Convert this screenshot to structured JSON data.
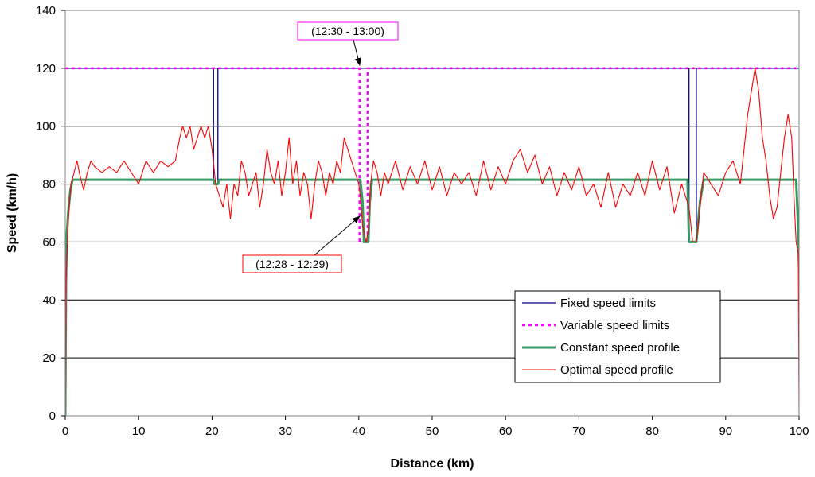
{
  "chart_data": {
    "type": "line",
    "title": "",
    "xlabel": "Distance (km)",
    "ylabel": "Speed (km/h)",
    "xlim": [
      0,
      100
    ],
    "ylim": [
      0,
      140
    ],
    "xticks": [
      "0",
      "10",
      "20",
      "30",
      "40",
      "50",
      "60",
      "70",
      "80",
      "90",
      "100"
    ],
    "yticks": [
      "0",
      "20",
      "40",
      "60",
      "80",
      "100",
      "120",
      "140"
    ],
    "grid": "horizontal",
    "legend_position": "bottom-right",
    "series": [
      {
        "name": "Fixed speed limits",
        "color": "#000080",
        "style": "solid",
        "points": [
          [
            0,
            120
          ],
          [
            20.2,
            120
          ],
          [
            20.2,
            80
          ],
          [
            20.8,
            80
          ],
          [
            20.8,
            120
          ],
          [
            85,
            120
          ],
          [
            85,
            60
          ],
          [
            86,
            60
          ],
          [
            86,
            120
          ],
          [
            100,
            120
          ]
        ]
      },
      {
        "name": "Variable speed limits",
        "color": "#ff00ff",
        "style": "dashed",
        "points": [
          [
            0,
            120
          ],
          [
            40.1,
            120
          ],
          [
            40.1,
            60
          ],
          [
            41.2,
            60
          ],
          [
            41.2,
            120
          ],
          [
            100,
            120
          ]
        ]
      },
      {
        "name": "Constant speed profile",
        "color": "#339966",
        "style": "solid",
        "points": [
          [
            0,
            0
          ],
          [
            0.1,
            46
          ],
          [
            0.2,
            62
          ],
          [
            0.4,
            70
          ],
          [
            0.7,
            78
          ],
          [
            1,
            81.5
          ],
          [
            20.2,
            81.5
          ],
          [
            20.4,
            80
          ],
          [
            20.8,
            80
          ],
          [
            21,
            81.5
          ],
          [
            40.2,
            81.5
          ],
          [
            40.5,
            74
          ],
          [
            40.7,
            60
          ],
          [
            41.3,
            60
          ],
          [
            41.5,
            74
          ],
          [
            41.8,
            81.5
          ],
          [
            84.8,
            81.5
          ],
          [
            85,
            60
          ],
          [
            86,
            60
          ],
          [
            86.5,
            74
          ],
          [
            87,
            81.5
          ],
          [
            99.6,
            81.5
          ],
          [
            99.8,
            70
          ],
          [
            100,
            52
          ]
        ]
      },
      {
        "name": "Optimal speed profile",
        "color": "#ff0000",
        "style": "solid",
        "points": [
          [
            0,
            0
          ],
          [
            0.1,
            46
          ],
          [
            0.3,
            60
          ],
          [
            0.5,
            72
          ],
          [
            0.8,
            80
          ],
          [
            1.2,
            84
          ],
          [
            1.6,
            88
          ],
          [
            2,
            83
          ],
          [
            2.5,
            78
          ],
          [
            3,
            84
          ],
          [
            3.5,
            88
          ],
          [
            4,
            86
          ],
          [
            5,
            84
          ],
          [
            6,
            86
          ],
          [
            7,
            84
          ],
          [
            8,
            88
          ],
          [
            9,
            84
          ],
          [
            10,
            80
          ],
          [
            11,
            88
          ],
          [
            12,
            84
          ],
          [
            13,
            88
          ],
          [
            14,
            86
          ],
          [
            15,
            88
          ],
          [
            15.6,
            96
          ],
          [
            16,
            100
          ],
          [
            16.5,
            96
          ],
          [
            17,
            100
          ],
          [
            17.5,
            92
          ],
          [
            18,
            96
          ],
          [
            18.5,
            100
          ],
          [
            19,
            96
          ],
          [
            19.5,
            100
          ],
          [
            20,
            92
          ],
          [
            20.5,
            80
          ],
          [
            21,
            76
          ],
          [
            21.5,
            72
          ],
          [
            22,
            80
          ],
          [
            22.5,
            68
          ],
          [
            23,
            80
          ],
          [
            23.5,
            76
          ],
          [
            24,
            88
          ],
          [
            24.5,
            84
          ],
          [
            25,
            76
          ],
          [
            25.5,
            80
          ],
          [
            26,
            84
          ],
          [
            26.5,
            72
          ],
          [
            27,
            80
          ],
          [
            27.5,
            92
          ],
          [
            28,
            84
          ],
          [
            28.5,
            80
          ],
          [
            29,
            88
          ],
          [
            29.5,
            76
          ],
          [
            30,
            84
          ],
          [
            30.5,
            96
          ],
          [
            31,
            80
          ],
          [
            31.5,
            88
          ],
          [
            32,
            76
          ],
          [
            32.5,
            84
          ],
          [
            33,
            80
          ],
          [
            33.5,
            68
          ],
          [
            34,
            80
          ],
          [
            34.5,
            88
          ],
          [
            35,
            84
          ],
          [
            35.5,
            76
          ],
          [
            36,
            84
          ],
          [
            36.5,
            80
          ],
          [
            37,
            88
          ],
          [
            37.5,
            84
          ],
          [
            38,
            96
          ],
          [
            38.5,
            92
          ],
          [
            39,
            88
          ],
          [
            39.5,
            84
          ],
          [
            40,
            80
          ],
          [
            40.2,
            76
          ],
          [
            40.5,
            66
          ],
          [
            40.8,
            62
          ],
          [
            41,
            60
          ],
          [
            41.3,
            64
          ],
          [
            41.6,
            80
          ],
          [
            42,
            88
          ],
          [
            42.5,
            84
          ],
          [
            43,
            76
          ],
          [
            43.5,
            84
          ],
          [
            44,
            80
          ],
          [
            45,
            88
          ],
          [
            46,
            78
          ],
          [
            47,
            86
          ],
          [
            48,
            80
          ],
          [
            49,
            88
          ],
          [
            50,
            78
          ],
          [
            51,
            86
          ],
          [
            52,
            76
          ],
          [
            53,
            84
          ],
          [
            54,
            80
          ],
          [
            55,
            84
          ],
          [
            56,
            76
          ],
          [
            57,
            88
          ],
          [
            58,
            78
          ],
          [
            59,
            86
          ],
          [
            60,
            80
          ],
          [
            61,
            88
          ],
          [
            62,
            92
          ],
          [
            63,
            84
          ],
          [
            64,
            90
          ],
          [
            65,
            80
          ],
          [
            66,
            86
          ],
          [
            67,
            76
          ],
          [
            68,
            84
          ],
          [
            69,
            78
          ],
          [
            70,
            86
          ],
          [
            71,
            76
          ],
          [
            72,
            80
          ],
          [
            73,
            72
          ],
          [
            74,
            84
          ],
          [
            75,
            72
          ],
          [
            76,
            80
          ],
          [
            77,
            76
          ],
          [
            78,
            84
          ],
          [
            79,
            76
          ],
          [
            80,
            88
          ],
          [
            81,
            78
          ],
          [
            82,
            86
          ],
          [
            83,
            70
          ],
          [
            84,
            80
          ],
          [
            85,
            72
          ],
          [
            85.5,
            60
          ],
          [
            86,
            60
          ],
          [
            86.5,
            72
          ],
          [
            87,
            84
          ],
          [
            88,
            80
          ],
          [
            89,
            76
          ],
          [
            90,
            84
          ],
          [
            91,
            88
          ],
          [
            92,
            80
          ],
          [
            92.5,
            92
          ],
          [
            93,
            104
          ],
          [
            93.5,
            112
          ],
          [
            94,
            120
          ],
          [
            94.5,
            112
          ],
          [
            95,
            96
          ],
          [
            95.5,
            88
          ],
          [
            96,
            76
          ],
          [
            96.5,
            68
          ],
          [
            97,
            72
          ],
          [
            97.5,
            84
          ],
          [
            98,
            96
          ],
          [
            98.5,
            104
          ],
          [
            99,
            96
          ],
          [
            99.3,
            76
          ],
          [
            99.6,
            60
          ],
          [
            99.9,
            56
          ],
          [
            100,
            0
          ]
        ]
      }
    ],
    "annotations": [
      {
        "text": "(12:30 - 13:00)",
        "x": 40.1,
        "y": 120,
        "border_color": "#ff00ff"
      },
      {
        "text": "(12:28 - 12:29)",
        "x": 40.7,
        "y": 68,
        "border_color": "#ff0000"
      }
    ]
  }
}
